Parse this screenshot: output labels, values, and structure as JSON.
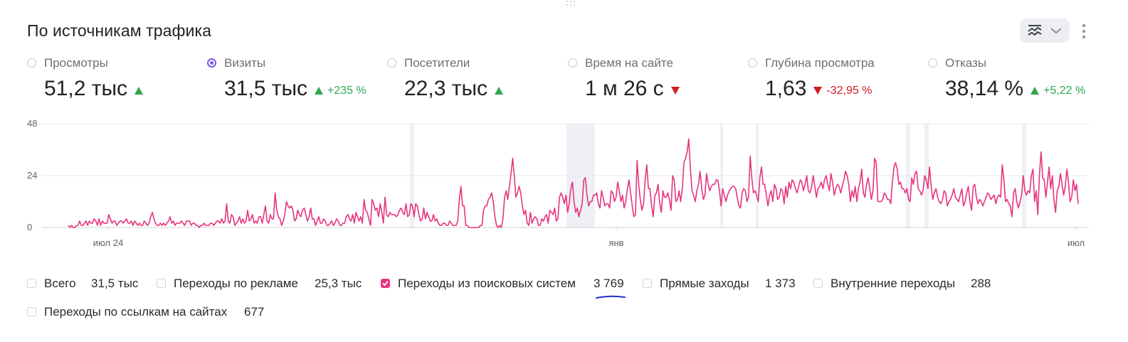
{
  "widget": {
    "title": "По источникам трафика",
    "view_toggle_icon": "line-chart-icon",
    "dropdown_icon": "chevron-down-icon",
    "more_icon": "vertical-dots-icon"
  },
  "metrics": [
    {
      "label": "Просмотры",
      "value": "51,2 тыс",
      "trend": "up",
      "change": "",
      "selected": false
    },
    {
      "label": "Визиты",
      "value": "31,5 тыс",
      "trend": "up",
      "change": "+235 %",
      "selected": true
    },
    {
      "label": "Посетители",
      "value": "22,3 тыс",
      "trend": "up",
      "change": "",
      "selected": false
    },
    {
      "label": "Время на сайте",
      "value": "1 м 26 с",
      "trend": "down",
      "change": "",
      "selected": false
    },
    {
      "label": "Глубина просмотра",
      "value": "1,63",
      "trend": "down",
      "change": "-32,95 %",
      "selected": false
    },
    {
      "label": "Отказы",
      "value": "38,14 %",
      "trend": "up",
      "change": "+5,22 %",
      "selected": false
    }
  ],
  "colors": {
    "up": "#2fa84f",
    "down": "#d11c1c",
    "series": "#e6357e",
    "radio_selected": "#7b57e0"
  },
  "chart_data": {
    "type": "line",
    "y_ticks": [
      "0",
      "24",
      "48"
    ],
    "ylim": [
      0,
      48
    ],
    "x_ticks": [
      "июл 24",
      "янв",
      "июл"
    ],
    "grid": true,
    "series": [
      {
        "name": "Переходы из поисковых систем",
        "color": "#e6357e",
        "values": [
          1,
          0,
          1,
          0,
          0,
          1,
          1,
          3,
          1,
          1,
          2,
          3,
          1,
          3,
          2,
          2,
          4,
          3,
          1,
          4,
          1,
          3,
          2,
          2,
          2,
          6,
          4,
          2,
          3,
          3,
          1,
          2,
          3,
          3,
          2,
          3,
          4,
          2,
          2,
          3,
          1,
          3,
          2,
          1,
          2,
          1,
          1,
          3,
          2,
          1,
          2,
          5,
          7,
          4,
          2,
          1,
          1,
          2,
          1,
          2,
          1,
          2,
          3,
          5,
          2,
          3,
          1,
          2,
          2,
          2,
          3,
          2,
          1,
          3,
          3,
          3,
          1,
          2,
          2,
          1,
          1,
          0,
          1,
          1,
          2,
          1,
          1,
          1,
          2,
          2,
          1,
          2,
          3,
          3,
          2,
          4,
          2,
          3,
          11,
          3,
          2,
          6,
          5,
          1,
          2,
          3,
          5,
          2,
          4,
          2,
          3,
          8,
          3,
          4,
          6,
          2,
          3,
          2,
          5,
          5,
          2,
          6,
          10,
          3,
          2,
          6,
          4,
          4,
          16,
          8,
          5,
          4,
          1,
          3,
          6,
          12,
          10,
          9,
          10,
          8,
          3,
          4,
          8,
          6,
          5,
          8,
          9,
          6,
          3,
          5,
          9,
          4,
          4,
          1,
          3,
          5,
          2,
          2,
          4,
          3,
          1,
          1,
          2,
          3,
          1,
          2,
          4,
          3,
          1,
          1,
          2,
          2,
          5,
          6,
          4,
          3,
          6,
          2,
          7,
          5,
          3,
          5,
          2,
          13,
          8,
          7,
          4,
          1,
          13,
          11,
          8,
          9,
          5,
          11,
          7,
          2,
          14,
          6,
          5,
          7,
          6,
          6,
          6,
          5,
          6,
          8,
          9,
          7,
          6,
          11,
          5,
          6,
          11,
          10,
          5,
          11,
          10,
          6,
          3,
          4,
          9,
          4,
          7,
          5,
          3,
          3,
          6,
          3,
          4,
          2,
          1,
          1,
          2,
          2,
          1,
          1,
          3,
          2,
          1,
          1,
          1,
          3,
          13,
          19,
          10,
          10,
          1,
          1,
          0,
          0,
          0,
          0,
          0,
          0,
          0,
          1,
          1,
          8,
          10,
          10,
          13,
          14,
          16,
          12,
          5,
          1,
          0,
          1,
          0,
          4,
          14,
          17,
          13,
          19,
          25,
          32,
          24,
          14,
          16,
          19,
          16,
          10,
          6,
          8,
          2,
          1,
          7,
          2,
          4,
          5,
          4,
          1,
          1,
          4,
          3,
          5,
          6,
          2,
          8,
          7,
          6,
          9,
          3,
          4,
          14,
          16,
          14,
          11,
          15,
          7,
          11,
          18,
          21,
          12,
          7,
          9,
          5,
          8,
          11,
          22,
          23,
          15,
          10,
          12,
          12,
          15,
          15,
          16,
          11,
          9,
          17,
          14,
          10,
          11,
          11,
          9,
          17,
          16,
          12,
          14,
          21,
          17,
          12,
          15,
          9,
          12,
          18,
          22,
          16,
          10,
          5,
          6,
          31,
          20,
          13,
          8,
          11,
          22,
          29,
          18,
          18,
          10,
          5,
          15,
          16,
          20,
          11,
          7,
          17,
          14,
          14,
          16,
          13,
          8,
          24,
          22,
          12,
          13,
          17,
          12,
          18,
          30,
          32,
          35,
          41,
          27,
          17,
          15,
          12,
          17,
          20,
          26,
          18,
          13,
          15,
          25,
          20,
          17,
          19,
          20,
          20,
          22,
          22,
          17,
          10,
          18,
          15,
          12,
          15,
          17,
          18,
          19,
          19,
          18,
          14,
          10,
          9,
          16,
          18,
          17,
          12,
          14,
          33,
          23,
          16,
          17,
          15,
          12,
          23,
          28,
          20,
          20,
          15,
          10,
          15,
          17,
          12,
          20,
          18,
          13,
          14,
          18,
          17,
          11,
          19,
          14,
          21,
          18,
          22,
          21,
          18,
          16,
          19,
          22,
          21,
          17,
          20,
          24,
          17,
          16,
          19,
          24,
          19,
          14,
          18,
          19,
          21,
          18,
          22,
          24,
          20,
          17,
          25,
          21,
          15,
          18,
          20,
          19,
          16,
          19,
          22,
          26,
          24,
          20,
          12,
          17,
          14,
          19,
          12,
          18,
          21,
          27,
          16,
          14,
          20,
          23,
          18,
          13,
          17,
          32,
          30,
          12,
          12,
          12,
          13,
          16,
          15,
          13,
          13,
          11,
          21,
          28,
          30,
          27,
          20,
          21,
          18,
          18,
          16,
          18,
          13,
          12,
          23,
          20,
          25,
          26,
          18,
          17,
          15,
          17,
          24,
          22,
          18,
          28,
          19,
          13,
          16,
          18,
          14,
          12,
          11,
          13,
          17,
          16,
          10,
          12,
          13,
          15,
          18,
          14,
          13,
          12,
          15,
          18,
          10,
          12,
          16,
          19,
          12,
          8,
          19,
          20,
          14,
          11,
          13,
          12,
          10,
          12,
          14,
          16,
          15,
          13,
          14,
          15,
          11,
          14,
          15,
          14,
          29,
          22,
          12,
          13,
          11,
          10,
          5,
          16,
          18,
          12,
          9,
          12,
          15,
          24,
          17,
          15,
          17,
          16,
          24,
          27,
          12,
          17,
          6,
          24,
          35,
          23,
          22,
          14,
          21,
          28,
          18,
          24,
          13,
          7,
          17,
          19,
          25,
          20,
          15,
          19,
          27,
          21,
          12,
          14,
          22,
          17,
          20,
          11
        ]
      }
    ]
  },
  "legend": [
    {
      "label": "Всего",
      "value": "31,5 тыс",
      "checked": false
    },
    {
      "label": "Переходы по рекламе",
      "value": "25,3 тыс",
      "checked": false
    },
    {
      "label": "Переходы из поисковых систем",
      "value": "3 769",
      "checked": true
    },
    {
      "label": "Прямые заходы",
      "value": "1 373",
      "checked": false
    },
    {
      "label": "Внутренние переходы",
      "value": "288",
      "checked": false
    },
    {
      "label": "Переходы по ссылкам на сайтах",
      "value": "677",
      "checked": false
    }
  ]
}
